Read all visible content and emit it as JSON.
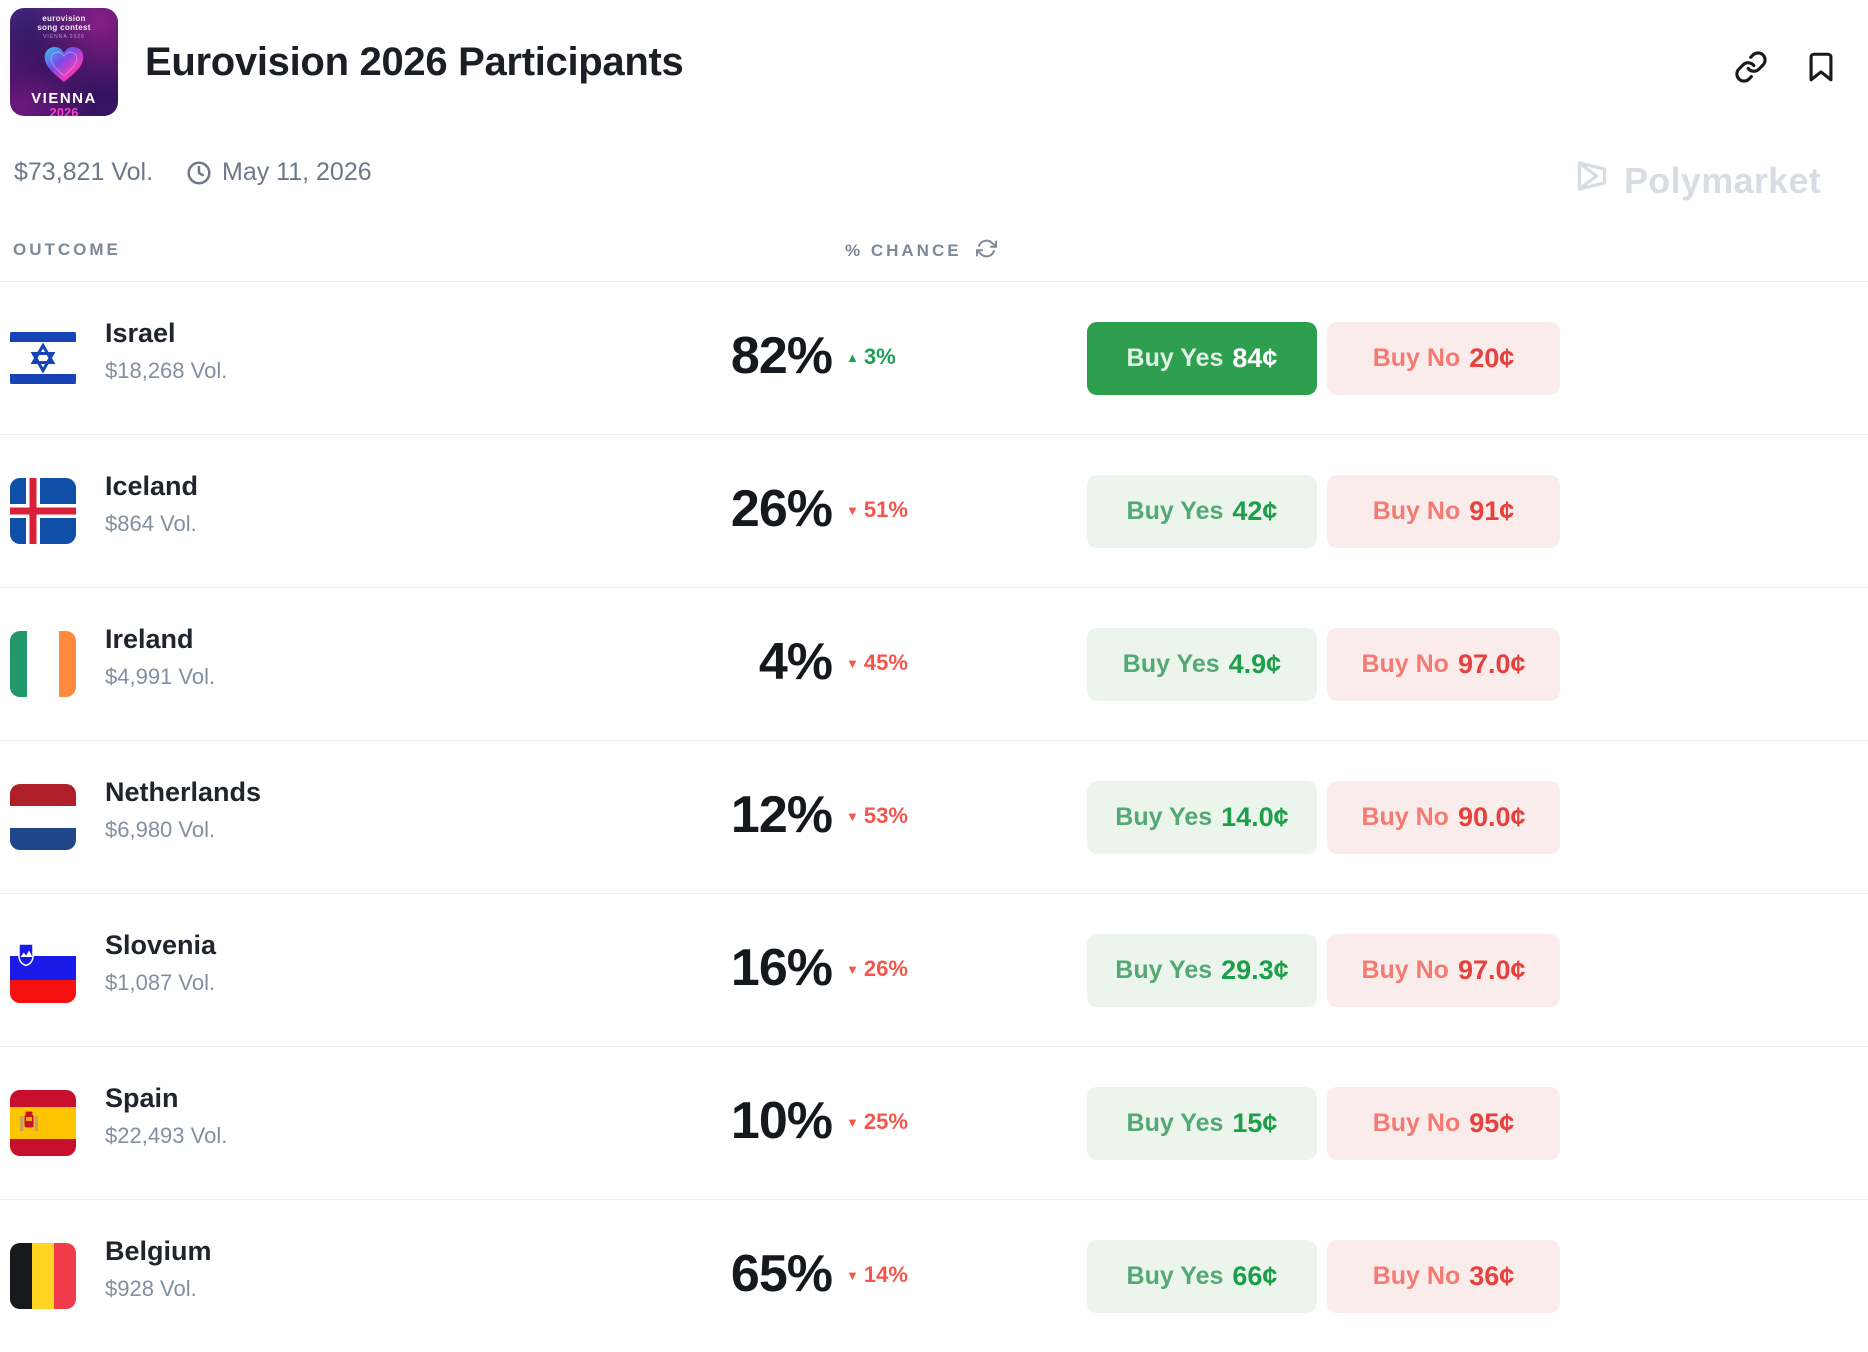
{
  "header": {
    "title": "Eurovision 2026 Participants",
    "volume": "$73,821 Vol.",
    "date": "May 11, 2026",
    "watermark": "Polymarket",
    "logo": {
      "top_line1": "eurovision",
      "top_line2": "song contest",
      "sub": "VIENNA 2026",
      "city": "VIENNA",
      "year": "2026"
    }
  },
  "table": {
    "outcome_header": "OUTCOME",
    "chance_header": "% CHANCE"
  },
  "icons": {
    "up": "▲",
    "down": "▼"
  },
  "colors": {
    "yes_solid_bg": "#2E9E4F",
    "yes_bg": "#EBF5EC",
    "yes_text": "#1D9E4B",
    "no_bg": "#FBECEC",
    "no_text": "#E6413C",
    "up": "#1F9E57",
    "down": "#F4554C",
    "accent_pink": "#FF3DCB"
  },
  "rows": [
    {
      "country": "Israel",
      "volume": "$18,268 Vol.",
      "chance": "82%",
      "change": "3%",
      "change_dir": "up",
      "flag": "israel",
      "yes_label": "Buy Yes",
      "yes_price": "84¢",
      "no_label": "Buy No",
      "no_price": "20¢",
      "yes_style": "solid"
    },
    {
      "country": "Iceland",
      "volume": "$864 Vol.",
      "chance": "26%",
      "change": "51%",
      "change_dir": "down",
      "flag": "iceland",
      "yes_label": "Buy Yes",
      "yes_price": "42¢",
      "no_label": "Buy No",
      "no_price": "91¢",
      "yes_style": "light"
    },
    {
      "country": "Ireland",
      "volume": "$4,991 Vol.",
      "chance": "4%",
      "change": "45%",
      "change_dir": "down",
      "flag": "ireland",
      "yes_label": "Buy Yes",
      "yes_price": "4.9¢",
      "no_label": "Buy No",
      "no_price": "97.0¢",
      "yes_style": "light"
    },
    {
      "country": "Netherlands",
      "volume": "$6,980 Vol.",
      "chance": "12%",
      "change": "53%",
      "change_dir": "down",
      "flag": "netherlands",
      "yes_label": "Buy Yes",
      "yes_price": "14.0¢",
      "no_label": "Buy No",
      "no_price": "90.0¢",
      "yes_style": "light"
    },
    {
      "country": "Slovenia",
      "volume": "$1,087 Vol.",
      "chance": "16%",
      "change": "26%",
      "change_dir": "down",
      "flag": "slovenia",
      "yes_label": "Buy Yes",
      "yes_price": "29.3¢",
      "no_label": "Buy No",
      "no_price": "97.0¢",
      "yes_style": "light"
    },
    {
      "country": "Spain",
      "volume": "$22,493 Vol.",
      "chance": "10%",
      "change": "25%",
      "change_dir": "down",
      "flag": "spain",
      "yes_label": "Buy Yes",
      "yes_price": "15¢",
      "no_label": "Buy No",
      "no_price": "95¢",
      "yes_style": "light"
    },
    {
      "country": "Belgium",
      "volume": "$928 Vol.",
      "chance": "65%",
      "change": "14%",
      "change_dir": "down",
      "flag": "belgium",
      "yes_label": "Buy Yes",
      "yes_price": "66¢",
      "no_label": "Buy No",
      "no_price": "36¢",
      "yes_style": "light"
    }
  ]
}
